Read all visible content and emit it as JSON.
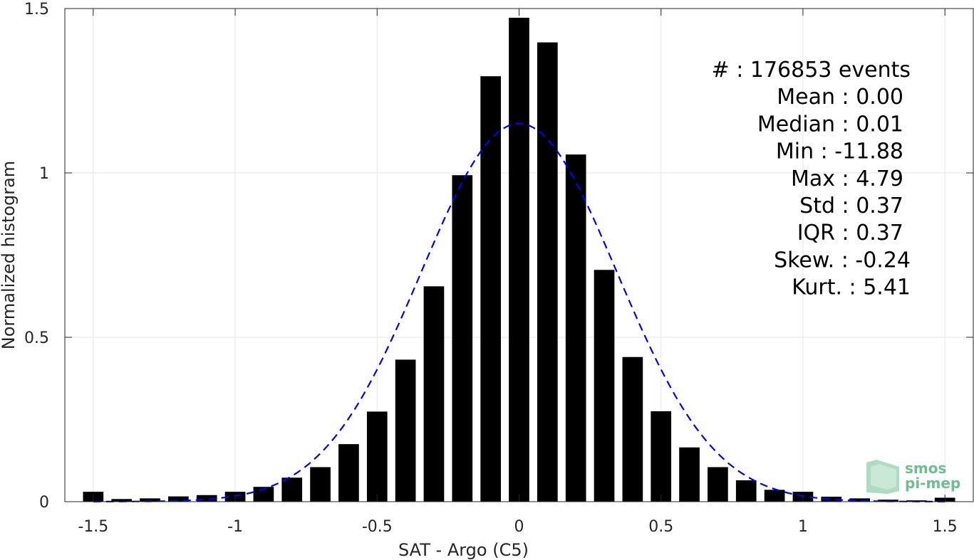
{
  "chart_data": {
    "type": "bar",
    "xlabel": "SAT - Argo (C5)",
    "ylabel": "Normalized histogram",
    "xlim": [
      -1.6,
      1.6
    ],
    "ylim": [
      0,
      1.5
    ],
    "grid": true,
    "xticks": [
      -1.5,
      -1,
      -0.5,
      0,
      0.5,
      1,
      1.5
    ],
    "xtick_labels": [
      "-1.5",
      "-1",
      "-0.5",
      "0",
      "0.5",
      "1",
      "1.5"
    ],
    "yticks": [
      0,
      0.5,
      1,
      1.5
    ],
    "ytick_labels": [
      "0",
      "0.5",
      "1",
      "1.5"
    ],
    "bin_centers": [
      -1.5,
      -1.4,
      -1.3,
      -1.2,
      -1.1,
      -1.0,
      -0.9,
      -0.8,
      -0.7,
      -0.6,
      -0.5,
      -0.4,
      -0.3,
      -0.2,
      -0.1,
      0.0,
      0.1,
      0.2,
      0.3,
      0.4,
      0.5,
      0.6,
      0.7,
      0.8,
      0.9,
      1.0,
      1.1,
      1.2,
      1.3,
      1.4,
      1.5
    ],
    "values": [
      0.03,
      0.008,
      0.01,
      0.016,
      0.02,
      0.03,
      0.045,
      0.073,
      0.105,
      0.175,
      0.274,
      0.432,
      0.655,
      0.993,
      1.294,
      1.472,
      1.397,
      1.056,
      0.705,
      0.44,
      0.275,
      0.165,
      0.105,
      0.065,
      0.036,
      0.03,
      0.015,
      0.01,
      0.006,
      0.004,
      0.012
    ],
    "bar_color": "#000000",
    "fit_curve": {
      "style": "dashed",
      "color": "#0000FF",
      "mean": 0.0,
      "std": 0.345,
      "peak": 1.15
    },
    "annotations": [
      "#  : 176853 events",
      "Mean : 0.00",
      "Median : 0.01",
      "Min : -11.88",
      "Max : 4.79",
      "Std : 0.37",
      "IQR : 0.37",
      "Skew. : -0.24",
      "Kurt. : 5.41"
    ]
  },
  "logo": {
    "line1": "smos",
    "line2": "pi-mep",
    "color": "#6dbf8f"
  }
}
